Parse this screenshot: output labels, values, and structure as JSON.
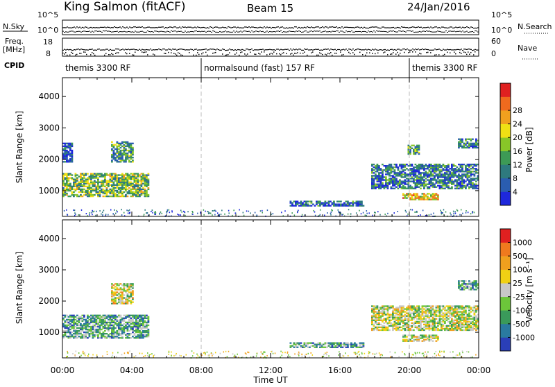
{
  "header": {
    "station": "King Salmon (fitACF)",
    "beam": "Beam 15",
    "date": "24/Jan/2016"
  },
  "sidebars": {
    "nsky": "N.Sky",
    "nsky_ticks": [
      "10^5",
      "10^0"
    ],
    "nsearch": "N.Search",
    "nsearch_ticks": [
      "10^5",
      "10^0"
    ],
    "freq": "Freq.",
    "freq_unit": "[MHz]",
    "freq_ticks": [
      "18",
      "8"
    ],
    "nave": "Nave",
    "nave_ticks": [
      "60",
      "0"
    ],
    "cpid": "CPID"
  },
  "cpid_segments": [
    {
      "label": "themis 3300 RF",
      "start_h": 0,
      "end_h": 8
    },
    {
      "label": "normalsound (fast) 157 RF",
      "start_h": 8,
      "end_h": 20
    },
    {
      "label": "themis 3300 RF",
      "start_h": 20,
      "end_h": 24
    }
  ],
  "chart_data": [
    {
      "type": "heatmap",
      "name": "power",
      "xlabel": "Time UT",
      "ylabel": "Slant Range [km]",
      "xlim": [
        0,
        24
      ],
      "ylim": [
        180,
        4600
      ],
      "x_ticks": [
        "00:00",
        "04:00",
        "08:00",
        "12:00",
        "16:00",
        "20:00",
        "00:00"
      ],
      "y_ticks": [
        1000,
        2000,
        3000,
        4000
      ],
      "colorbar": {
        "label": "Power [dB]",
        "range": [
          0,
          32
        ],
        "ticks": [
          "4",
          "8",
          "12",
          "16",
          "20",
          "24",
          "28"
        ],
        "colors": [
          "#1e28dc",
          "#2a5db0",
          "#2e7a7e",
          "#3d9a55",
          "#88c628",
          "#f0e014",
          "#f0a01e",
          "#f06a1e",
          "#e02020"
        ]
      },
      "echo_regions": [
        {
          "t0": 0.0,
          "t1": 4.9,
          "r0": 800,
          "r1": 1550,
          "level": 0.45
        },
        {
          "t0": 0.0,
          "t1": 0.6,
          "r0": 1900,
          "r1": 2500,
          "level": 0.15
        },
        {
          "t0": 2.8,
          "t1": 4.1,
          "r0": 1900,
          "r1": 2550,
          "level": 0.35
        },
        {
          "t0": 13.1,
          "t1": 17.4,
          "r0": 500,
          "r1": 650,
          "level": 0.2
        },
        {
          "t0": 17.8,
          "t1": 24.0,
          "r0": 1050,
          "r1": 1850,
          "level": 0.25
        },
        {
          "t0": 19.6,
          "t1": 21.7,
          "r0": 700,
          "r1": 900,
          "level": 0.65
        },
        {
          "t0": 19.9,
          "t1": 20.6,
          "r0": 2150,
          "r1": 2450,
          "level": 0.35
        },
        {
          "t0": 22.8,
          "t1": 24.0,
          "r0": 2350,
          "r1": 2650,
          "level": 0.25
        }
      ]
    },
    {
      "type": "heatmap",
      "name": "velocity",
      "xlabel": "Time UT",
      "ylabel": "Slant Range [km]",
      "xlim": [
        0,
        24
      ],
      "ylim": [
        180,
        4600
      ],
      "x_ticks": [
        "00:00",
        "04:00",
        "08:00",
        "12:00",
        "16:00",
        "20:00",
        "00:00"
      ],
      "y_ticks": [
        1000,
        2000,
        3000,
        4000
      ],
      "colorbar": {
        "label": "Velocity [m s⁻¹]",
        "ticks": [
          "1000",
          "500",
          "100",
          "25",
          "-25",
          "-100",
          "-500",
          "-1000"
        ],
        "colors": [
          "#2a3fb8",
          "#2a7aa0",
          "#3a9a5a",
          "#6cc63a",
          "#c8c8c8",
          "#f0d014",
          "#f0a01e",
          "#f07a1e",
          "#e02020"
        ]
      },
      "echo_regions": [
        {
          "t0": 0.0,
          "t1": 4.9,
          "r0": 800,
          "r1": 1550,
          "level": 0.3
        },
        {
          "t0": 2.8,
          "t1": 4.1,
          "r0": 1900,
          "r1": 2550,
          "level": 0.55
        },
        {
          "t0": 13.1,
          "t1": 17.4,
          "r0": 500,
          "r1": 650,
          "level": 0.3
        },
        {
          "t0": 17.8,
          "t1": 24.0,
          "r0": 1050,
          "r1": 1850,
          "level": 0.5
        },
        {
          "t0": 19.6,
          "t1": 21.7,
          "r0": 700,
          "r1": 900,
          "level": 0.5
        },
        {
          "t0": 22.8,
          "t1": 24.0,
          "r0": 2350,
          "r1": 2650,
          "level": 0.3
        }
      ]
    }
  ],
  "colors": {
    "text": "#000000",
    "dashed_marker": "#bbbbbb"
  }
}
